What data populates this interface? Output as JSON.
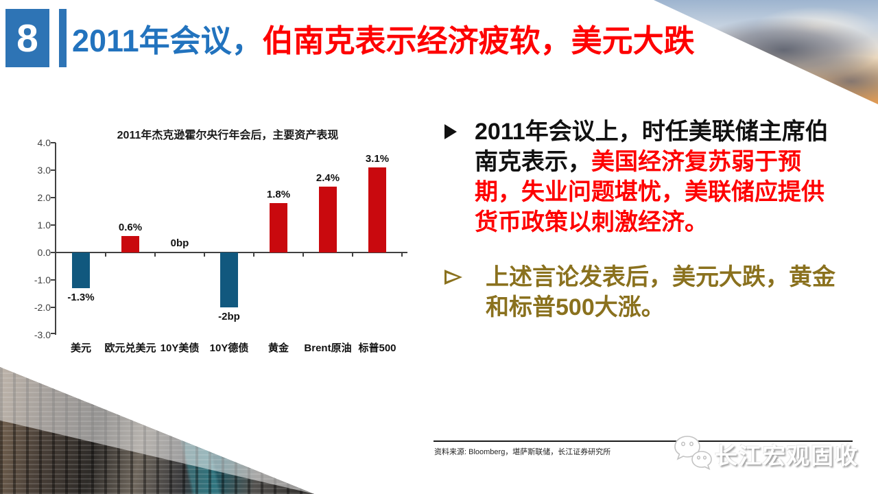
{
  "theme": {
    "accent_blue": "#2E74B5",
    "title_blue": "#2273BE",
    "title_red": "#FE0000",
    "bullet_gold": "#8A711E",
    "chart_positive_red": "#C9090E",
    "chart_negative_blue": "#11587E"
  },
  "slide": {
    "number": "8",
    "title_segments": [
      {
        "text": "2011年会议，",
        "color": "#2273BE"
      },
      {
        "text": "伯南克表示经济疲软，美元大跌",
        "color": "#FE0000"
      }
    ]
  },
  "chart_data": {
    "type": "bar",
    "title": "2011年杰克逊霍尔央行年会后，主要资产表现",
    "categories": [
      "美元",
      "欧元兑美元",
      "10Y美债",
      "10Y德债",
      "黄金",
      "Brent原油",
      "标普500"
    ],
    "values": [
      -1.3,
      0.6,
      0,
      -2,
      1.8,
      2.4,
      3.1
    ],
    "labels": [
      "-1.3%",
      "0.6%",
      "0bp",
      "-2bp",
      "1.8%",
      "2.4%",
      "3.1%"
    ],
    "yticks": [
      "4.0",
      "3.0",
      "2.0",
      "1.0",
      "0.0",
      "-1.0",
      "-2.0",
      "-3.0"
    ],
    "ylim": [
      -3.0,
      4.0
    ],
    "ytick_step": 1.0,
    "grid": false,
    "legend": "none",
    "positive_color": "#C9090E",
    "negative_color": "#11587E",
    "xlabel": "",
    "ylabel": ""
  },
  "bullets": [
    {
      "marker": {
        "style": "solid-arrow",
        "color": "#111111"
      },
      "indent": false,
      "segments": [
        {
          "text": "2011年会议上，时任美联储主席伯南克表示，",
          "color": "#111111"
        },
        {
          "text": "美国经济复苏弱于预期，失业问题堪忧，美联储应提供货币政策以刺激经济。",
          "color": "#FE0000"
        }
      ]
    },
    {
      "marker": {
        "style": "outline-arrow",
        "color": "#8A711E"
      },
      "indent": true,
      "segments": [
        {
          "text": "上述言论发表后，美元大跌，黄金和标普500大涨。",
          "color": "#8A711E"
        }
      ]
    }
  ],
  "footer": {
    "source": "资料来源: Bloomberg，堪萨斯联储，长江证券研究所",
    "logo_text": "长江宏观固收"
  },
  "icons": {
    "logo": "wechat-icon",
    "bullet": "arrow-bullet-icon"
  },
  "decorations": {
    "top_right": "sunset-clouds-photo",
    "bottom_left": "city-skyline-photo"
  }
}
